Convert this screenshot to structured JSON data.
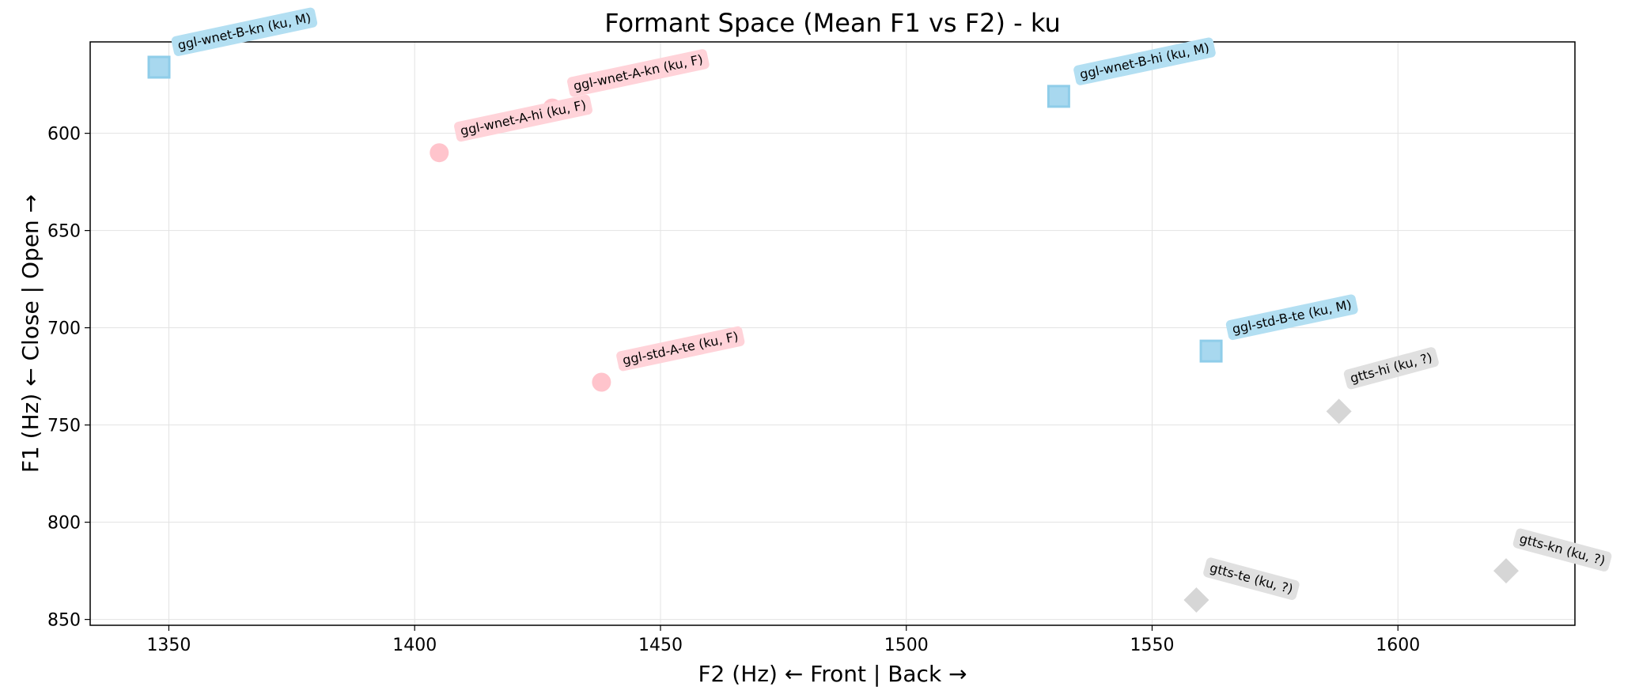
{
  "chart_data": {
    "type": "scatter",
    "title": "Formant Space (Mean F1 vs F2) - ku",
    "xlabel": "F2 (Hz) ← Front | Back →",
    "ylabel": "F1 (Hz) ← Close | Open →",
    "xlim": [
      1334,
      1636
    ],
    "ylim": [
      553,
      853
    ],
    "y_inverted": true,
    "grid": true,
    "xticks": [
      1350,
      1400,
      1450,
      1500,
      1550,
      1600
    ],
    "yticks": [
      600,
      650,
      700,
      750,
      800,
      850
    ],
    "points": [
      {
        "label": "ggl-wnet-B-kn (ku, M)",
        "x": 1348,
        "y": 566,
        "gender": "M"
      },
      {
        "label": "ggl-wnet-A-kn (ku, F)",
        "x": 1428,
        "y": 587,
        "gender": "F"
      },
      {
        "label": "ggl-wnet-A-hi (ku, F)",
        "x": 1405,
        "y": 610,
        "gender": "F"
      },
      {
        "label": "ggl-wnet-B-hi (ku, M)",
        "x": 1531,
        "y": 581,
        "gender": "M"
      },
      {
        "label": "ggl-std-A-te (ku, F)",
        "x": 1438,
        "y": 728,
        "gender": "F"
      },
      {
        "label": "ggl-std-B-te (ku, M)",
        "x": 1562,
        "y": 712,
        "gender": "M"
      },
      {
        "label": "gtts-hi (ku, ?)",
        "x": 1588,
        "y": 743,
        "gender": "?"
      },
      {
        "label": "gtts-te (ku, ?)",
        "x": 1559,
        "y": 840,
        "gender": "?"
      },
      {
        "label": "gtts-kn (ku, ?)",
        "x": 1622,
        "y": 825,
        "gender": "?"
      }
    ],
    "styles": {
      "M": {
        "marker": "square",
        "fill": "#a8d8ef",
        "box": "#b3dff2"
      },
      "F": {
        "marker": "circle",
        "fill": "#ffc4cc",
        "box": "#ffd3d9"
      },
      "?": {
        "marker": "diamond",
        "fill": "#d6d6d6",
        "box": "#e0e0e0"
      }
    }
  }
}
